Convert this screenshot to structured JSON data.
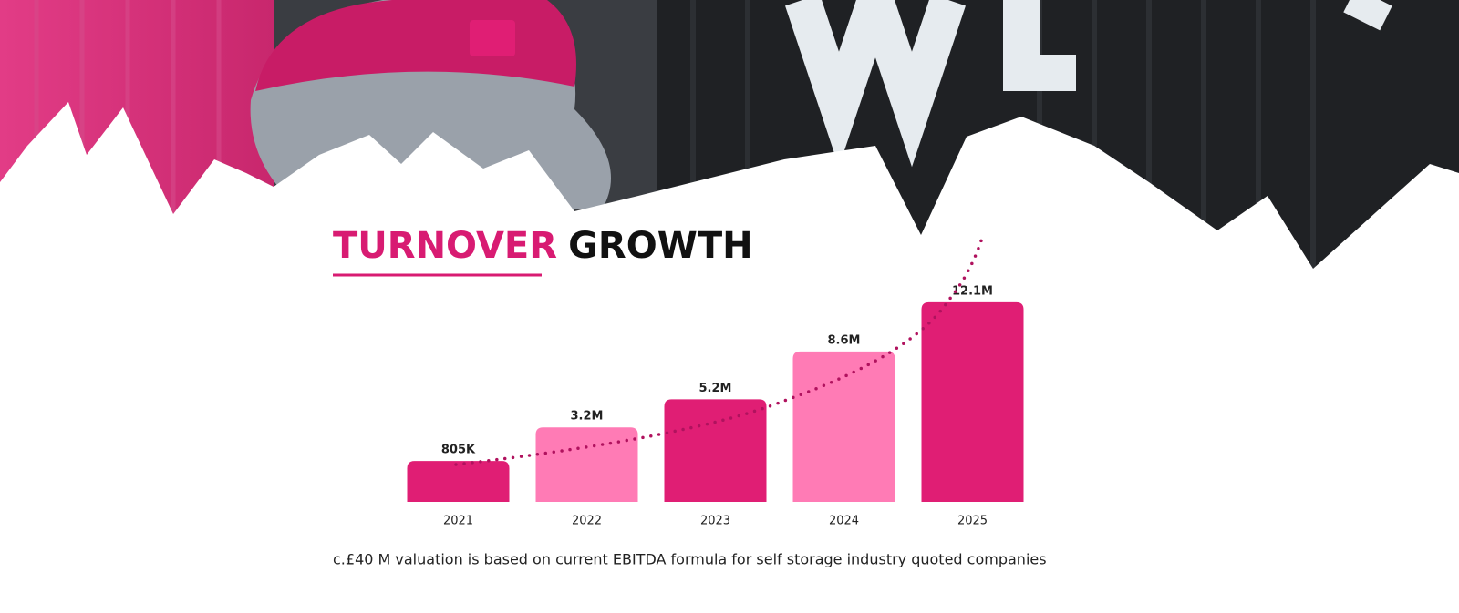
{
  "chart_data": {
    "type": "bar",
    "title": [
      "TURNOVER",
      "GROWTH"
    ],
    "title_colors": [
      "#d81b72",
      "#111111"
    ],
    "categories": [
      "2021",
      "2022",
      "2023",
      "2024",
      "2025"
    ],
    "values": [
      805000,
      3200000,
      5200000,
      8600000,
      12100000
    ],
    "value_labels": [
      "805K",
      "3.2M",
      "5.2M",
      "8.6M",
      "12.1M"
    ],
    "colors": [
      "#e01e74",
      "#ff7bb5",
      "#e01e74",
      "#ff7bb5",
      "#e01e74"
    ],
    "ylim": [
      -2100000,
      13000000
    ],
    "trendline_color": "#b0125e",
    "footnote": "c.£40 M valuation is based on current EBITDA formula for self storage industry quoted companies"
  }
}
